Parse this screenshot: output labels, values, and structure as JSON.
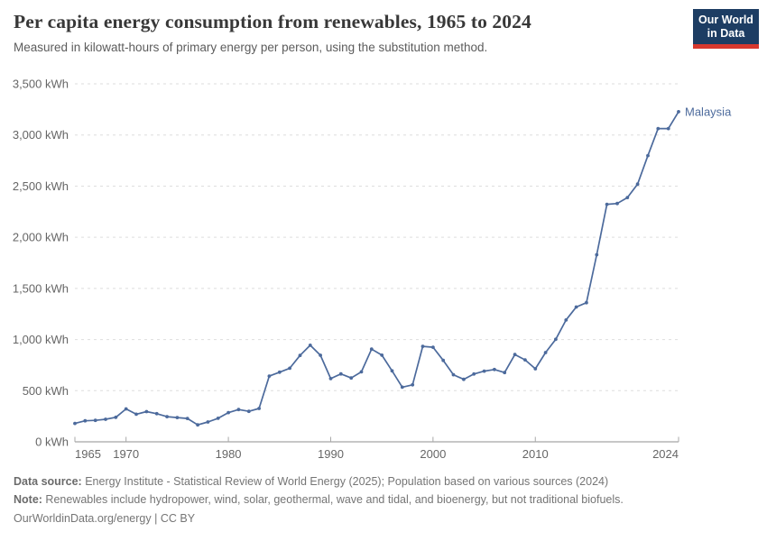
{
  "header": {
    "title": "Per capita energy consumption from renewables, 1965 to 2024",
    "subtitle": "Measured in kilowatt-hours of primary energy per person, using the substitution method."
  },
  "logo": {
    "line1": "Our World",
    "line2": "in Data"
  },
  "colors": {
    "line": "#4c6a9c",
    "grid": "#dddddd",
    "axis": "#8f8f8f",
    "tick_label": "#666666",
    "logo_bg": "#1d3d63",
    "logo_stripe": "#d7382e"
  },
  "chart_data": {
    "type": "line",
    "title": "Per capita energy consumption from renewables, 1965 to 2024",
    "unit": "kWh",
    "xlim": [
      1965,
      2024
    ],
    "ylim": [
      0,
      3500
    ],
    "yticks": [
      0,
      500,
      1000,
      1500,
      2000,
      2500,
      3000,
      3500
    ],
    "xticks": [
      1965,
      1970,
      1980,
      1990,
      2000,
      2010,
      2024
    ],
    "grid": "horizontal-dashed",
    "legend": "end-of-line-label",
    "series": [
      {
        "name": "Malaysia",
        "color": "#4c6a9c",
        "x": [
          1965,
          1966,
          1967,
          1968,
          1969,
          1970,
          1971,
          1972,
          1973,
          1974,
          1975,
          1976,
          1977,
          1978,
          1979,
          1980,
          1981,
          1982,
          1983,
          1984,
          1985,
          1986,
          1987,
          1988,
          1989,
          1990,
          1991,
          1992,
          1993,
          1994,
          1995,
          1996,
          1997,
          1998,
          1999,
          2000,
          2001,
          2002,
          2003,
          2004,
          2005,
          2006,
          2007,
          2008,
          2009,
          2010,
          2011,
          2012,
          2013,
          2014,
          2015,
          2016,
          2017,
          2018,
          2019,
          2020,
          2021,
          2022,
          2023,
          2024
        ],
        "values": [
          180,
          205,
          210,
          220,
          240,
          322,
          270,
          295,
          275,
          246,
          237,
          228,
          166,
          194,
          230,
          286,
          316,
          298,
          326,
          643,
          681,
          719,
          845,
          944,
          846,
          618,
          664,
          624,
          684,
          906,
          847,
          694,
          534,
          557,
          934,
          925,
          796,
          656,
          611,
          663,
          691,
          707,
          677,
          853,
          801,
          714,
          873,
          1002,
          1191,
          1318,
          1360,
          1829,
          2322,
          2330,
          2388,
          2520,
          2798,
          3063,
          3063,
          3228
        ]
      }
    ]
  },
  "footer": {
    "data_source_label": "Data source:",
    "data_source_text": " Energy Institute - Statistical Review of World Energy (2025); Population based on various sources (2024)",
    "note_label": "Note:",
    "note_text": " Renewables include hydropower, wind, solar, geothermal, wave and tidal, and bioenergy, but not traditional biofuels.",
    "url": "OurWorldinData.org/energy",
    "separator": " | ",
    "license": "CC BY"
  }
}
